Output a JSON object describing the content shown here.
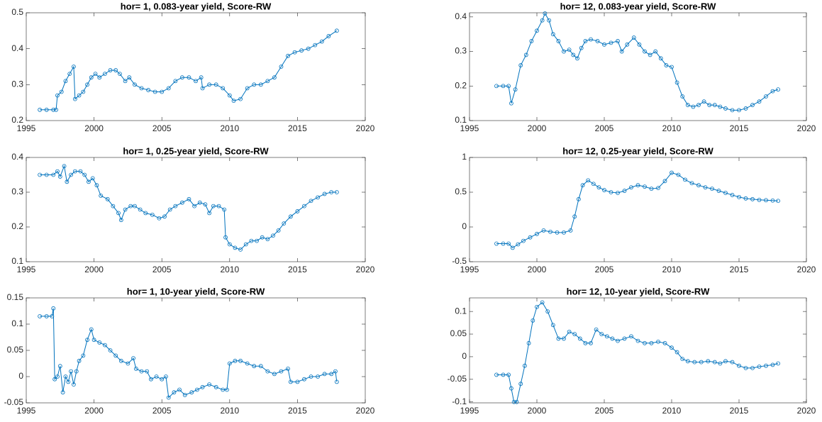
{
  "chart_data": [
    {
      "type": "line",
      "title": "hor= 1, 0.083-year yield, Score-RW",
      "color": "#0072bd",
      "xlim": [
        1995,
        2020
      ],
      "xticks": [
        1995,
        2000,
        2005,
        2010,
        2015,
        2020
      ],
      "ylim": [
        0.2,
        0.5
      ],
      "yticks": [
        0.2,
        0.3,
        0.4,
        0.5
      ],
      "x": [
        1996.0,
        1996.5,
        1997.0,
        1997.2,
        1997.3,
        1997.6,
        1997.9,
        1998.2,
        1998.5,
        1998.6,
        1998.9,
        1999.2,
        1999.5,
        1999.8,
        2000.1,
        2000.4,
        2000.8,
        2001.2,
        2001.6,
        2001.9,
        2002.3,
        2002.6,
        2003.0,
        2003.5,
        2004.0,
        2004.5,
        2005.0,
        2005.5,
        2006.0,
        2006.5,
        2007.0,
        2007.5,
        2007.9,
        2008.0,
        2008.5,
        2009.0,
        2009.5,
        2010.0,
        2010.3,
        2010.8,
        2011.3,
        2011.8,
        2012.3,
        2012.8,
        2013.3,
        2013.8,
        2014.3,
        2014.8,
        2015.3,
        2015.8,
        2016.3,
        2016.8,
        2017.3,
        2017.9
      ],
      "values": [
        0.23,
        0.23,
        0.23,
        0.23,
        0.27,
        0.28,
        0.31,
        0.33,
        0.35,
        0.26,
        0.27,
        0.28,
        0.3,
        0.32,
        0.33,
        0.32,
        0.33,
        0.34,
        0.34,
        0.33,
        0.31,
        0.32,
        0.3,
        0.29,
        0.285,
        0.28,
        0.28,
        0.29,
        0.31,
        0.32,
        0.32,
        0.31,
        0.32,
        0.29,
        0.3,
        0.3,
        0.29,
        0.27,
        0.255,
        0.26,
        0.29,
        0.3,
        0.3,
        0.31,
        0.32,
        0.35,
        0.38,
        0.39,
        0.395,
        0.4,
        0.41,
        0.42,
        0.435,
        0.45
      ]
    },
    {
      "type": "line",
      "title": "hor= 12, 0.083-year yield, Score-RW",
      "color": "#0072bd",
      "xlim": [
        1995,
        2020
      ],
      "xticks": [
        1995,
        2000,
        2005,
        2010,
        2015,
        2020
      ],
      "ylim": [
        0.1,
        0.412
      ],
      "yticks": [
        0.1,
        0.2,
        0.3,
        0.4
      ],
      "x": [
        1997.0,
        1997.5,
        1997.9,
        1998.1,
        1998.4,
        1998.8,
        1999.2,
        1999.6,
        2000.0,
        2000.4,
        2000.6,
        2000.9,
        2001.2,
        2001.6,
        2002.0,
        2002.4,
        2002.7,
        2003.0,
        2003.3,
        2003.6,
        2004.0,
        2004.5,
        2005.0,
        2005.5,
        2006.0,
        2006.3,
        2006.7,
        2007.2,
        2007.6,
        2008.0,
        2008.4,
        2008.8,
        2009.2,
        2009.6,
        2010.0,
        2010.4,
        2010.8,
        2011.2,
        2011.6,
        2012.0,
        2012.4,
        2012.8,
        2013.2,
        2013.6,
        2014.0,
        2014.5,
        2015.0,
        2015.5,
        2016.0,
        2016.5,
        2017.0,
        2017.5,
        2017.9
      ],
      "values": [
        0.2,
        0.2,
        0.2,
        0.15,
        0.19,
        0.26,
        0.29,
        0.33,
        0.36,
        0.39,
        0.41,
        0.39,
        0.35,
        0.33,
        0.3,
        0.305,
        0.29,
        0.28,
        0.31,
        0.33,
        0.335,
        0.33,
        0.32,
        0.325,
        0.33,
        0.3,
        0.32,
        0.34,
        0.32,
        0.3,
        0.29,
        0.3,
        0.28,
        0.26,
        0.255,
        0.21,
        0.17,
        0.145,
        0.14,
        0.145,
        0.155,
        0.145,
        0.145,
        0.14,
        0.135,
        0.13,
        0.13,
        0.135,
        0.145,
        0.155,
        0.17,
        0.185,
        0.19
      ]
    },
    {
      "type": "line",
      "title": "hor= 1, 0.25-year yield, Score-RW",
      "color": "#0072bd",
      "xlim": [
        1995,
        2020
      ],
      "xticks": [
        1995,
        2000,
        2005,
        2010,
        2015,
        2020
      ],
      "ylim": [
        0.1,
        0.4
      ],
      "yticks": [
        0.1,
        0.2,
        0.3,
        0.4
      ],
      "x": [
        1996.0,
        1996.5,
        1997.0,
        1997.3,
        1997.5,
        1997.8,
        1998.0,
        1998.3,
        1998.6,
        1999.0,
        1999.3,
        1999.6,
        1999.9,
        2000.2,
        2000.5,
        2001.0,
        2001.4,
        2001.8,
        2002.0,
        2002.3,
        2002.7,
        2003.0,
        2003.4,
        2003.8,
        2004.3,
        2004.8,
        2005.2,
        2005.6,
        2006.0,
        2006.5,
        2007.0,
        2007.4,
        2007.8,
        2008.2,
        2008.5,
        2008.8,
        2009.2,
        2009.6,
        2009.7,
        2010.0,
        2010.4,
        2010.8,
        2011.2,
        2011.6,
        2012.0,
        2012.4,
        2012.8,
        2013.2,
        2013.6,
        2014.0,
        2014.5,
        2015.0,
        2015.5,
        2016.0,
        2016.5,
        2017.0,
        2017.5,
        2017.9
      ],
      "values": [
        0.35,
        0.35,
        0.35,
        0.36,
        0.345,
        0.375,
        0.33,
        0.35,
        0.36,
        0.36,
        0.35,
        0.33,
        0.34,
        0.32,
        0.29,
        0.28,
        0.26,
        0.24,
        0.22,
        0.25,
        0.26,
        0.26,
        0.25,
        0.24,
        0.235,
        0.225,
        0.23,
        0.25,
        0.26,
        0.27,
        0.28,
        0.26,
        0.27,
        0.265,
        0.24,
        0.26,
        0.26,
        0.25,
        0.17,
        0.15,
        0.14,
        0.135,
        0.15,
        0.16,
        0.16,
        0.17,
        0.165,
        0.175,
        0.19,
        0.21,
        0.23,
        0.245,
        0.26,
        0.275,
        0.285,
        0.295,
        0.3,
        0.3
      ]
    },
    {
      "type": "line",
      "title": "hor= 12, 0.25-year yield, Score-RW",
      "color": "#0072bd",
      "xlim": [
        1995,
        2020
      ],
      "xticks": [
        1995,
        2000,
        2005,
        2010,
        2015,
        2020
      ],
      "ylim": [
        -0.5,
        1
      ],
      "yticks": [
        -0.5,
        0,
        0.5,
        1
      ],
      "x": [
        1997.0,
        1997.5,
        1997.9,
        1998.2,
        1998.6,
        1999.0,
        1999.5,
        2000.0,
        2000.5,
        2001.0,
        2001.5,
        2002.0,
        2002.5,
        2002.8,
        2003.1,
        2003.4,
        2003.8,
        2004.2,
        2004.6,
        2005.0,
        2005.5,
        2006.0,
        2006.5,
        2007.0,
        2007.5,
        2008.0,
        2008.5,
        2009.0,
        2009.5,
        2010.0,
        2010.5,
        2011.0,
        2011.5,
        2012.0,
        2012.5,
        2013.0,
        2013.5,
        2014.0,
        2014.5,
        2015.0,
        2015.5,
        2016.0,
        2016.5,
        2017.0,
        2017.5,
        2017.9
      ],
      "values": [
        -0.24,
        -0.24,
        -0.24,
        -0.3,
        -0.25,
        -0.2,
        -0.15,
        -0.1,
        -0.05,
        -0.07,
        -0.08,
        -0.08,
        -0.05,
        0.15,
        0.4,
        0.6,
        0.67,
        0.62,
        0.57,
        0.53,
        0.5,
        0.49,
        0.52,
        0.57,
        0.6,
        0.58,
        0.55,
        0.56,
        0.66,
        0.78,
        0.75,
        0.68,
        0.63,
        0.6,
        0.57,
        0.55,
        0.52,
        0.49,
        0.46,
        0.43,
        0.41,
        0.4,
        0.39,
        0.385,
        0.38,
        0.375
      ]
    },
    {
      "type": "line",
      "title": "hor= 1, 10-year yield, Score-RW",
      "color": "#0072bd",
      "xlim": [
        1995,
        2020
      ],
      "xticks": [
        1995,
        2000,
        2005,
        2010,
        2015,
        2020
      ],
      "ylim": [
        -0.05,
        0.15
      ],
      "yticks": [
        -0.05,
        0,
        0.05,
        0.1,
        0.15
      ],
      "x": [
        1996.0,
        1996.5,
        1996.9,
        1997.0,
        1997.1,
        1997.3,
        1997.5,
        1997.7,
        1997.9,
        1998.1,
        1998.3,
        1998.5,
        1998.7,
        1998.9,
        1999.2,
        1999.5,
        1999.8,
        2000.0,
        2000.4,
        2000.8,
        2001.2,
        2001.6,
        2002.0,
        2002.5,
        2002.9,
        2003.1,
        2003.5,
        2003.9,
        2004.2,
        2004.6,
        2005.0,
        2005.3,
        2005.5,
        2005.9,
        2006.3,
        2006.7,
        2007.2,
        2007.6,
        2008.0,
        2008.5,
        2009.0,
        2009.5,
        2009.8,
        2010.0,
        2010.4,
        2010.8,
        2011.3,
        2011.8,
        2012.3,
        2012.8,
        2013.3,
        2013.8,
        2014.3,
        2014.5,
        2015.0,
        2015.5,
        2016.0,
        2016.5,
        2017.0,
        2017.5,
        2017.8,
        2017.9
      ],
      "values": [
        0.115,
        0.115,
        0.115,
        0.13,
        -0.005,
        0,
        0.02,
        -0.03,
        0,
        -0.01,
        0.01,
        -0.015,
        0.01,
        0.03,
        0.04,
        0.07,
        0.09,
        0.07,
        0.065,
        0.06,
        0.05,
        0.04,
        0.03,
        0.025,
        0.035,
        0.015,
        0.01,
        0.01,
        -0.005,
        0,
        -0.005,
        0,
        -0.04,
        -0.03,
        -0.025,
        -0.035,
        -0.03,
        -0.025,
        -0.02,
        -0.015,
        -0.02,
        -0.025,
        -0.025,
        0.025,
        0.03,
        0.03,
        0.025,
        0.02,
        0.02,
        0.01,
        0.005,
        0.01,
        0.015,
        -0.01,
        -0.01,
        -0.005,
        0,
        0,
        0.005,
        0.005,
        0.01,
        -0.01
      ]
    },
    {
      "type": "line",
      "title": "hor= 12, 10-year yield, Score-RW",
      "color": "#0072bd",
      "xlim": [
        1995,
        2020
      ],
      "xticks": [
        1995,
        2000,
        2005,
        2010,
        2015,
        2020
      ],
      "ylim": [
        -0.102,
        0.13
      ],
      "yticks": [
        -0.1,
        -0.05,
        0,
        0.05,
        0.1
      ],
      "x": [
        1997.0,
        1997.5,
        1997.9,
        1998.1,
        1998.3,
        1998.5,
        1998.8,
        1999.1,
        1999.4,
        1999.7,
        2000.0,
        2000.4,
        2000.8,
        2001.2,
        2001.6,
        2002.0,
        2002.4,
        2002.8,
        2003.2,
        2003.6,
        2004.0,
        2004.4,
        2004.8,
        2005.2,
        2005.6,
        2006.0,
        2006.5,
        2007.0,
        2007.5,
        2008.0,
        2008.5,
        2009.0,
        2009.5,
        2010.0,
        2010.4,
        2010.8,
        2011.2,
        2011.7,
        2012.2,
        2012.7,
        2013.2,
        2013.6,
        2014.0,
        2014.5,
        2015.0,
        2015.5,
        2016.0,
        2016.5,
        2017.0,
        2017.5,
        2017.9
      ],
      "values": [
        -0.04,
        -0.04,
        -0.04,
        -0.07,
        -0.1,
        -0.1,
        -0.06,
        -0.02,
        0.03,
        0.08,
        0.11,
        0.12,
        0.1,
        0.07,
        0.04,
        0.04,
        0.055,
        0.05,
        0.04,
        0.03,
        0.03,
        0.06,
        0.05,
        0.045,
        0.04,
        0.035,
        0.04,
        0.045,
        0.035,
        0.03,
        0.03,
        0.033,
        0.03,
        0.02,
        0.01,
        -0.005,
        -0.01,
        -0.012,
        -0.012,
        -0.01,
        -0.012,
        -0.015,
        -0.01,
        -0.012,
        -0.02,
        -0.025,
        -0.025,
        -0.022,
        -0.02,
        -0.018,
        -0.015
      ]
    }
  ]
}
